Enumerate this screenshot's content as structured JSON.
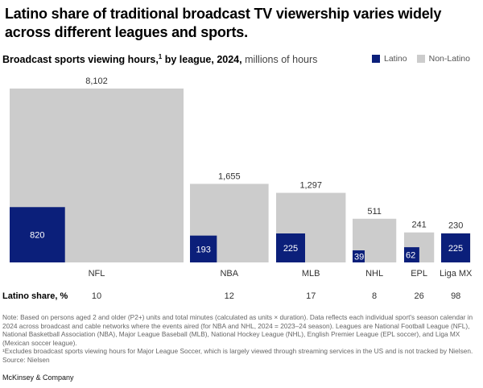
{
  "title": "Latino share of traditional broadcast TV viewership varies widely across different leagues and sports.",
  "subtitle": {
    "bold": "Broadcast sports viewing hours,",
    "sup": "1",
    "bold2": " by league, 2024,",
    "unit": " millions of hours"
  },
  "legend": [
    {
      "label": "Latino",
      "color": "#0b1f7a"
    },
    {
      "label": "Non-Latino",
      "color": "#cccccc"
    }
  ],
  "chart_data": {
    "type": "proportional-area squares",
    "unit": "millions of hours",
    "categories": [
      "NFL",
      "NBA",
      "MLB",
      "NHL",
      "EPL",
      "Liga MX"
    ],
    "total": [
      8102,
      1655,
      1297,
      511,
      241,
      230
    ],
    "total_labels": [
      "8,102",
      "1,655",
      "1,297",
      "511",
      "241",
      "230"
    ],
    "latino": [
      820,
      193,
      225,
      39,
      62,
      225
    ],
    "latino_share_label": "Latino share, %",
    "latino_share": [
      10,
      12,
      17,
      8,
      26,
      98
    ],
    "colors": {
      "latino": "#0b1f7a",
      "non_latino": "#cccccc"
    }
  },
  "notes": [
    "Note: Based on persons aged 2 and older (P2+) units and total minutes (calculated as units × duration). Data reflects each individual sport's season calendar in 2024 across broadcast and cable networks where the events aired (for NBA and NHL, 2024 = 2023–24 season). Leagues are National Football League (NFL), National Basketball Association (NBA), Major League Baseball (MLB), National Hockey League (NHL), English Premier League (EPL soccer), and Liga MX (Mexican soccer league).",
    "¹Excludes broadcast sports viewing hours for Major League Soccer, which is largely viewed through streaming services in the US and is not tracked by Nielsen.",
    "Source: Nielsen"
  ],
  "brand": "McKinsey & Company"
}
